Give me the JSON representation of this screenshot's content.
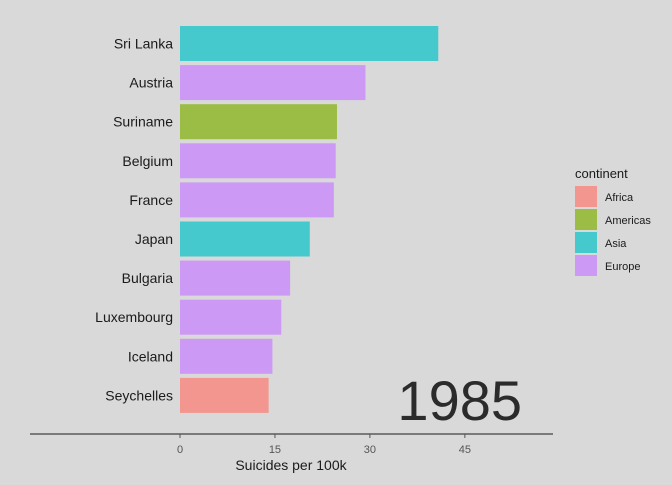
{
  "chart_data": {
    "type": "bar",
    "orientation": "horizontal",
    "year": "1985",
    "xlabel": "Suicides per 100k",
    "ylabel": "",
    "xlim": [
      0,
      58
    ],
    "x_ticks": [
      0,
      15,
      30,
      45
    ],
    "grid": false,
    "categories": [
      "Sri Lanka",
      "Austria",
      "Suriname",
      "Belgium",
      "France",
      "Japan",
      "Bulgaria",
      "Luxembourg",
      "Iceland",
      "Seychelles"
    ],
    "values": [
      40.8,
      29.3,
      24.8,
      24.6,
      24.3,
      20.5,
      17.4,
      16.0,
      14.6,
      14.0
    ],
    "continent": [
      "Asia",
      "Europe",
      "Americas",
      "Europe",
      "Europe",
      "Asia",
      "Europe",
      "Europe",
      "Europe",
      "Africa"
    ],
    "legend": {
      "title": "continent",
      "position": "right",
      "entries": [
        {
          "name": "Africa",
          "color": "#f2968f"
        },
        {
          "name": "Americas",
          "color": "#9cbd45"
        },
        {
          "name": "Asia",
          "color": "#45c9cc"
        },
        {
          "name": "Europe",
          "color": "#cc99f5"
        }
      ]
    }
  }
}
